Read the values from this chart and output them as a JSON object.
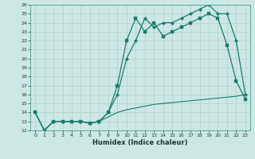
{
  "xlabel": "Humidex (Indice chaleur)",
  "bg_color": "#cde8e4",
  "grid_color": "#aed0cc",
  "line_color": "#1a7a6e",
  "xlim": [
    -0.5,
    23.5
  ],
  "ylim": [
    12,
    26
  ],
  "yticks": [
    12,
    13,
    14,
    15,
    16,
    17,
    18,
    19,
    20,
    21,
    22,
    23,
    24,
    25,
    26
  ],
  "xticks": [
    0,
    1,
    2,
    3,
    4,
    5,
    6,
    7,
    8,
    9,
    10,
    11,
    12,
    13,
    14,
    15,
    16,
    17,
    18,
    19,
    20,
    21,
    22,
    23
  ],
  "line1_x": [
    0,
    1,
    2,
    3,
    4,
    5,
    6,
    7,
    8,
    9,
    10,
    11,
    12,
    13,
    14,
    15,
    16,
    17,
    18,
    19,
    20,
    21,
    22,
    23
  ],
  "line1_y": [
    14,
    12,
    13,
    13,
    13,
    13,
    12.8,
    13,
    14,
    17,
    22,
    24.5,
    23,
    24,
    22.5,
    23,
    23.5,
    24,
    24.5,
    25,
    24.5,
    21.5,
    17.5,
    15.5
  ],
  "line2_x": [
    0,
    1,
    2,
    3,
    4,
    5,
    6,
    7,
    8,
    9,
    10,
    11,
    12,
    13,
    14,
    15,
    16,
    17,
    18,
    19,
    20,
    21,
    22,
    23
  ],
  "line2_y": [
    14,
    12,
    13,
    13,
    13,
    13,
    12.8,
    13,
    14,
    16,
    20,
    22,
    24.5,
    23.5,
    24,
    24,
    24.5,
    25,
    25.5,
    26,
    25,
    25,
    22,
    16
  ],
  "line3_x": [
    0,
    1,
    2,
    3,
    4,
    5,
    6,
    7,
    8,
    9,
    10,
    11,
    12,
    13,
    14,
    15,
    16,
    17,
    18,
    19,
    20,
    21,
    22,
    23
  ],
  "line3_y": [
    14,
    12,
    13,
    13,
    13,
    13,
    12.8,
    13,
    13.5,
    14.0,
    14.3,
    14.5,
    14.7,
    14.9,
    15.0,
    15.1,
    15.2,
    15.3,
    15.4,
    15.5,
    15.6,
    15.7,
    15.8,
    16.0
  ]
}
